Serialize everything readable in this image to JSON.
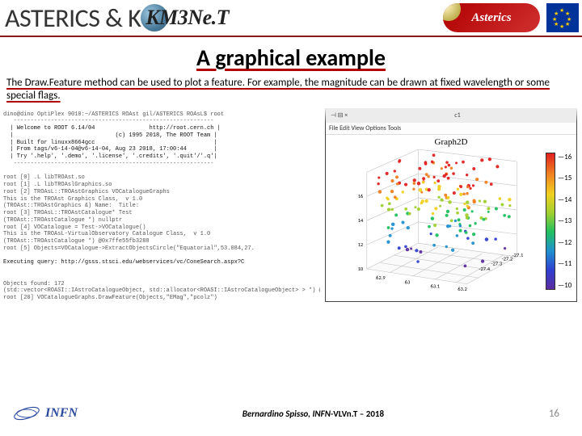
{
  "header": {
    "title_left": "ASTERICS & K",
    "title_mid_hidden": "M",
    "km3_text": "KM3Ne.T",
    "asterics_logo": "Asterics",
    "eu": "EU"
  },
  "title": "A graphical example",
  "body": "The Draw.Feature method can be used to plot a feature. For example, the magnitude can be drawn at fixed wavelength or some special flags.",
  "terminal": {
    "head": "dino@dino OptiPlex 9010:~/ASTERICS ROAst gil/ASTERICS ROAsL$ root",
    "welcome": "  | Welcome to ROOT 6.14/04                http://root.cern.ch |\n  |                              (c) 1995 2018, The ROOT Team |\n  | Built for linuxx8664gcc                                   |\n  | From tags/v6-14-04@v6-14-04, Aug 23 2018, 17:00:44        |\n  | Try '.help', '.demo', '.license', '.credits', '.quit'/'.q'|\n",
    "body1": "root [0] .L libTROAst.so\nroot [1] .L libTROAslGraphics.so\nroot [2] TROAsL::TROAstGraphics VOCatalogueGraphs\nThis is the TROAst Graphics Class,  v 1.0\n(TROAst::TROAstGraphics &) Name:  Title:\nroot [3] TROAsL::TROAstCatalogue* Test\n(TROAst::TROAstCatalogue *) nullptr\nroot [4] VOCatalogue = Test->VOCatalogue()\nThis is the TROAsL-VirtualObservatory Catalogue Class,  v 1.0\n(TROAst::TROAstCatalogue *) @0x7ffe55fb3288\nroot [5] Objects=VOCatalogue->ExtractObjectsCircle(\"Equatorial\",53.084,27.",
    "query": "Executing query: http://gsss.stsci.edu/webservices/vc/ConeSearch.aspx?C",
    "body2": "Objects found: 172\n(std::vector<ROASI::IAstroCatalogueObject, std::allocator<ROASI::IAstroCatalogueObject> > *) @0x7fle55lb11d8\nroot [20] VOCatalogueGraphs.DrawFeature(Objects,\"EMag\",\"pcolz\")"
  },
  "graph": {
    "window_title": "c1",
    "menu": "File  Edit  View  Options  Tools",
    "title": "Graph2D",
    "type": "scatter3d-colored",
    "colorbar": {
      "min": 9,
      "max": 16.5,
      "ticks": [
        "16",
        "15",
        "14",
        "13",
        "12",
        "11",
        "10"
      ]
    },
    "axis": {
      "x": {
        "min": 62.8,
        "max": 63.3,
        "ticks": [
          "62.9",
          "63",
          "63.1",
          "63.2",
          "63.3"
        ]
      },
      "y": {
        "min": -27.45,
        "max": -27.1,
        "ticks": [
          "-27.4",
          "-27.3",
          "-27.2",
          "-27.1"
        ]
      },
      "z": {
        "min": 9,
        "max": 17,
        "ticks": [
          "10",
          "12",
          "14",
          "16"
        ]
      }
    },
    "colors": {
      "low": "#5a2da0",
      "c1": "#3040d0",
      "c2": "#2090d0",
      "c3": "#20c060",
      "c4": "#a0d030",
      "c5": "#f0d020",
      "c6": "#f08020",
      "high": "#e02020"
    },
    "background": "#ffffff",
    "grid_color": "#bfbfbf"
  },
  "footer": {
    "infn": "INFN",
    "credit_prefix": "Bernardino Spisso, INFN-",
    "credit_emph": "VLVn.T – 2018",
    "page": "16"
  }
}
